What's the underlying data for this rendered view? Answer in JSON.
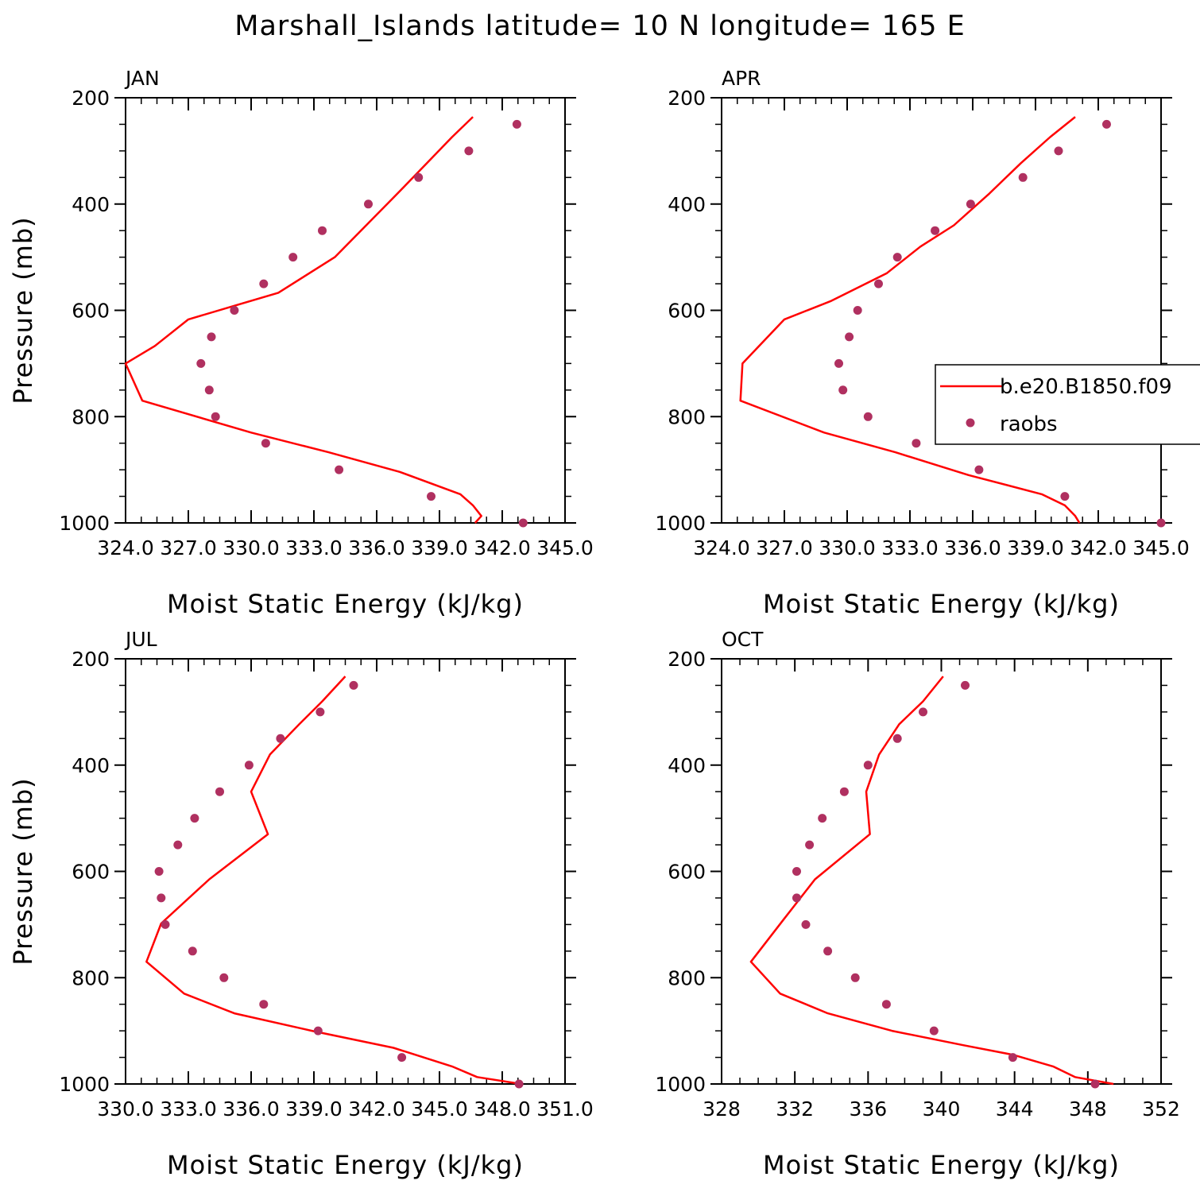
{
  "figure": {
    "title": "Marshall_Islands  latitude= 10 N longitude= 165 E",
    "colors": {
      "model_line": "#ff0000",
      "obs_points": "#b03060",
      "axes": "#000000",
      "background": "#ffffff"
    }
  },
  "legend": {
    "placement": "right-middle of APR panel",
    "entries": [
      {
        "label": "b.e20.B1850.f09",
        "kind": "line",
        "color": "#ff0000"
      },
      {
        "label": "raobs",
        "kind": "marker",
        "color": "#b03060"
      }
    ]
  },
  "chart_data": [
    {
      "type": "line",
      "panel": "JAN",
      "title": "JAN",
      "xlabel": "Moist Static Energy (kJ/kg)",
      "ylabel": "Pressure (mb)",
      "xlim": [
        324.0,
        345.0
      ],
      "ylim": [
        200,
        1000
      ],
      "y_reversed": true,
      "xticks": [
        324.0,
        327.0,
        330.0,
        333.0,
        336.0,
        339.0,
        342.0,
        345.0
      ],
      "xtick_labels": [
        "324.0",
        "327.0",
        "330.0",
        "333.0",
        "336.0",
        "339.0",
        "342.0",
        "345.0"
      ],
      "yticks": [
        200,
        400,
        600,
        800,
        1000
      ],
      "ytick_labels": [
        "200",
        "400",
        "600",
        "800",
        "1000"
      ],
      "series": [
        {
          "name": "b.e20.B1850.f09",
          "kind": "line",
          "points": [
            [
              340.6,
              236
            ],
            [
              339.6,
              274
            ],
            [
              338.4,
              323
            ],
            [
              337.0,
              380
            ],
            [
              335.5,
              440
            ],
            [
              334.0,
              500
            ],
            [
              331.3,
              567
            ],
            [
              327.0,
              617
            ],
            [
              325.4,
              667
            ],
            [
              324.0,
              700
            ],
            [
              324.8,
              770
            ],
            [
              330.0,
              830
            ],
            [
              333.7,
              867
            ],
            [
              337.1,
              904
            ],
            [
              340.0,
              946
            ],
            [
              340.6,
              967
            ],
            [
              341.0,
              987
            ],
            [
              340.7,
              1000
            ]
          ]
        },
        {
          "name": "raobs",
          "kind": "scatter",
          "points": [
            [
              342.7,
              250
            ],
            [
              340.4,
              300
            ],
            [
              338.0,
              350
            ],
            [
              335.6,
              400
            ],
            [
              333.4,
              450
            ],
            [
              332.0,
              500
            ],
            [
              330.6,
              550
            ],
            [
              329.2,
              600
            ],
            [
              328.1,
              650
            ],
            [
              327.6,
              700
            ],
            [
              328.0,
              750
            ],
            [
              328.3,
              800
            ],
            [
              330.7,
              850
            ],
            [
              334.2,
              900
            ],
            [
              338.6,
              950
            ],
            [
              343.0,
              1000
            ]
          ]
        }
      ]
    },
    {
      "type": "line",
      "panel": "APR",
      "title": "APR",
      "xlabel": "Moist Static Energy (kJ/kg)",
      "ylabel": "",
      "xlim": [
        324.0,
        345.0
      ],
      "ylim": [
        200,
        1000
      ],
      "y_reversed": true,
      "xticks": [
        324.0,
        327.0,
        330.0,
        333.0,
        336.0,
        339.0,
        342.0,
        345.0
      ],
      "xtick_labels": [
        "324.0",
        "327.0",
        "330.0",
        "333.0",
        "336.0",
        "339.0",
        "342.0",
        "345.0"
      ],
      "yticks": [
        200,
        400,
        600,
        800,
        1000
      ],
      "ytick_labels": [
        "200",
        "400",
        "600",
        "800",
        "1000"
      ],
      "series": [
        {
          "name": "b.e20.B1850.f09",
          "kind": "line",
          "points": [
            [
              340.9,
              236
            ],
            [
              339.7,
              274
            ],
            [
              338.3,
              323
            ],
            [
              336.8,
              380
            ],
            [
              335.1,
              440
            ],
            [
              333.5,
              480
            ],
            [
              331.9,
              530
            ],
            [
              329.2,
              583
            ],
            [
              327.0,
              617
            ],
            [
              325.0,
              700
            ],
            [
              324.9,
              770
            ],
            [
              328.9,
              830
            ],
            [
              332.3,
              867
            ],
            [
              335.8,
              910
            ],
            [
              339.3,
              946
            ],
            [
              340.4,
              967
            ],
            [
              340.9,
              987
            ],
            [
              341.1,
              1000
            ]
          ]
        },
        {
          "name": "raobs",
          "kind": "scatter",
          "points": [
            [
              342.4,
              250
            ],
            [
              340.1,
              300
            ],
            [
              338.4,
              350
            ],
            [
              335.9,
              400
            ],
            [
              334.2,
              450
            ],
            [
              332.4,
              500
            ],
            [
              331.5,
              550
            ],
            [
              330.5,
              600
            ],
            [
              330.1,
              650
            ],
            [
              329.6,
              700
            ],
            [
              329.8,
              750
            ],
            [
              331.0,
              800
            ],
            [
              333.3,
              850
            ],
            [
              336.3,
              900
            ],
            [
              340.4,
              950
            ],
            [
              345.0,
              1000
            ]
          ]
        }
      ]
    },
    {
      "type": "line",
      "panel": "JUL",
      "title": "JUL",
      "xlabel": "Moist Static Energy (kJ/kg)",
      "ylabel": "Pressure (mb)",
      "xlim": [
        330.0,
        351.0
      ],
      "ylim": [
        200,
        1000
      ],
      "y_reversed": true,
      "xticks": [
        330.0,
        333.0,
        336.0,
        339.0,
        342.0,
        345.0,
        348.0,
        351.0
      ],
      "xtick_labels": [
        "330.0",
        "333.0",
        "336.0",
        "339.0",
        "342.0",
        "345.0",
        "348.0",
        "351.0"
      ],
      "yticks": [
        200,
        400,
        600,
        800,
        1000
      ],
      "ytick_labels": [
        "200",
        "400",
        "600",
        "800",
        "1000"
      ],
      "series": [
        {
          "name": "b.e20.B1850.f09",
          "kind": "line",
          "points": [
            [
              340.5,
              233
            ],
            [
              339.4,
              280
            ],
            [
              338.3,
              323
            ],
            [
              336.9,
              380
            ],
            [
              336.0,
              450
            ],
            [
              336.8,
              530
            ],
            [
              334.0,
              615
            ],
            [
              331.7,
              698
            ],
            [
              331.0,
              770
            ],
            [
              332.8,
              830
            ],
            [
              335.2,
              867
            ],
            [
              338.9,
              900
            ],
            [
              342.8,
              932
            ],
            [
              345.6,
              967
            ],
            [
              346.8,
              987
            ],
            [
              348.9,
              1000
            ]
          ]
        },
        {
          "name": "raobs",
          "kind": "scatter",
          "points": [
            [
              340.9,
              250
            ],
            [
              339.3,
              300
            ],
            [
              337.4,
              350
            ],
            [
              335.9,
              400
            ],
            [
              334.5,
              450
            ],
            [
              333.3,
              500
            ],
            [
              332.5,
              550
            ],
            [
              331.6,
              600
            ],
            [
              331.7,
              650
            ],
            [
              331.9,
              700
            ],
            [
              333.2,
              750
            ],
            [
              334.7,
              800
            ],
            [
              336.6,
              850
            ],
            [
              339.2,
              900
            ],
            [
              343.2,
              950
            ],
            [
              348.8,
              1000
            ]
          ]
        }
      ]
    },
    {
      "type": "line",
      "panel": "OCT",
      "title": "OCT",
      "xlabel": "Moist Static Energy (kJ/kg)",
      "ylabel": "",
      "xlim": [
        328,
        352
      ],
      "ylim": [
        200,
        1000
      ],
      "y_reversed": true,
      "xticks": [
        328,
        332,
        336,
        340,
        344,
        348,
        352
      ],
      "xtick_labels": [
        "328",
        "332",
        "336",
        "340",
        "344",
        "348",
        "352"
      ],
      "yticks": [
        200,
        400,
        600,
        800,
        1000
      ],
      "ytick_labels": [
        "200",
        "400",
        "600",
        "800",
        "1000"
      ],
      "series": [
        {
          "name": "b.e20.B1850.f09",
          "kind": "line",
          "points": [
            [
              340.1,
              233
            ],
            [
              339.0,
              280
            ],
            [
              337.7,
              323
            ],
            [
              336.6,
              380
            ],
            [
              335.9,
              450
            ],
            [
              336.1,
              530
            ],
            [
              333.1,
              615
            ],
            [
              331.4,
              690
            ],
            [
              329.6,
              770
            ],
            [
              331.2,
              830
            ],
            [
              333.8,
              867
            ],
            [
              337.3,
              900
            ],
            [
              341.2,
              927
            ],
            [
              343.9,
              945
            ],
            [
              346.1,
              967
            ],
            [
              347.3,
              987
            ],
            [
              349.4,
              1000
            ]
          ]
        },
        {
          "name": "raobs",
          "kind": "scatter",
          "points": [
            [
              341.3,
              250
            ],
            [
              339.0,
              300
            ],
            [
              337.6,
              350
            ],
            [
              336.0,
              400
            ],
            [
              334.7,
              450
            ],
            [
              333.5,
              500
            ],
            [
              332.8,
              550
            ],
            [
              332.1,
              600
            ],
            [
              332.1,
              650
            ],
            [
              332.6,
              700
            ],
            [
              333.8,
              750
            ],
            [
              335.3,
              800
            ],
            [
              337.0,
              850
            ],
            [
              339.6,
              900
            ],
            [
              343.9,
              950
            ],
            [
              348.4,
              1000
            ]
          ]
        }
      ]
    }
  ]
}
